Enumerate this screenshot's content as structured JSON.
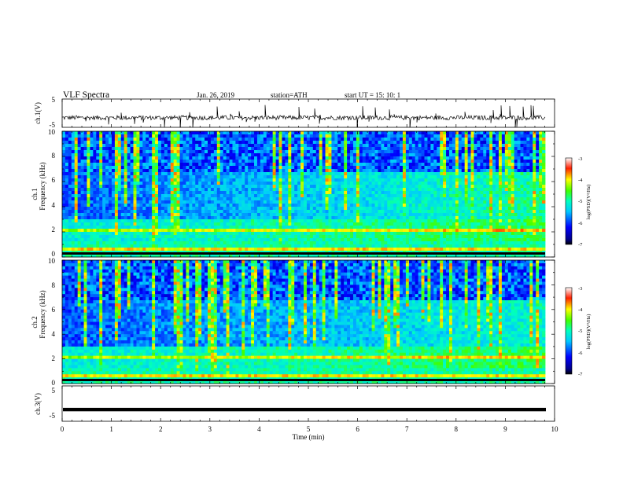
{
  "header": {
    "title": "VLF  Spectra",
    "date": "Jan. 26, 2019",
    "station": "station=ATH",
    "start": "start  UT  =    15: 10: 1"
  },
  "chart_data": [
    {
      "type": "line",
      "panel": "ch1-waveform",
      "ylabel": "ch.1(V)",
      "ylim": [
        -5,
        5
      ],
      "yticks": [
        "5",
        "-5"
      ],
      "xlim": [
        0,
        10
      ],
      "series": [
        {
          "trace_level": -1.6,
          "noise_amplitude": 0.8,
          "spike_amplitude": 4.5
        }
      ]
    },
    {
      "type": "heatmap",
      "panel": "ch1-spectrogram",
      "ylabel": [
        "ch.1",
        "Frequency (kHz)"
      ],
      "ylim": [
        0,
        10
      ],
      "yticks": [
        "0",
        "2",
        "4",
        "6",
        "8",
        "10"
      ],
      "xlim": [
        0,
        10
      ],
      "colorbar": {
        "label": "log(PSD)(V²/Hz)",
        "range": [
          -7,
          -3
        ],
        "ticks": [
          "-3",
          "-4",
          "-5",
          "-6",
          "-7"
        ]
      }
    },
    {
      "type": "heatmap",
      "panel": "ch2-spectrogram",
      "ylabel": [
        "ch.2",
        "Frequency (kHz)"
      ],
      "ylim": [
        0,
        10
      ],
      "yticks": [
        "0",
        "2",
        "4",
        "6",
        "8",
        "10"
      ],
      "xlim": [
        0,
        10
      ],
      "colorbar": {
        "label": "log(PSD)(V²/Hz)",
        "range": [
          -7,
          -3
        ],
        "ticks": [
          "-3",
          "-4",
          "-5",
          "-6",
          "-7"
        ]
      }
    },
    {
      "type": "line",
      "panel": "ch3-waveform",
      "ylabel": "ch.3(V)",
      "ylim": [
        -5,
        5
      ],
      "yticks": [
        "5",
        "-5"
      ],
      "xlim": [
        0,
        10
      ],
      "xlabel": "Time  (min)",
      "xticks": [
        "0",
        "1",
        "2",
        "3",
        "4",
        "5",
        "6",
        "7",
        "8",
        "9",
        "10"
      ],
      "series": [
        {
          "trace_level": -1.7
        }
      ]
    }
  ],
  "colors": {
    "axis": "#000000",
    "trace": "#000000",
    "background": "#ffffff"
  }
}
